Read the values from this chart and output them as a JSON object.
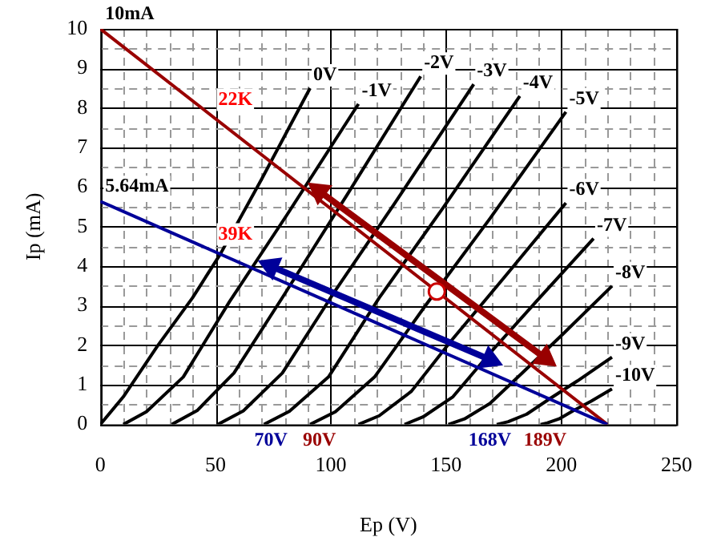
{
  "chart_data": {
    "type": "line",
    "xlabel": "Ep (V)",
    "ylabel": "Ip (mA)",
    "grid": true,
    "marker": "none",
    "xlim": [
      0,
      250
    ],
    "ylim": [
      0,
      10
    ],
    "xticks": [
      0,
      {
        "value": 10,
        "label": null
      },
      {
        "value": 20,
        "label": null
      },
      {
        "value": 30,
        "label": null
      },
      {
        "value": 40,
        "label": null
      },
      50,
      {
        "value": 60,
        "label": null
      },
      {
        "value": 70,
        "label": null
      },
      {
        "value": 80,
        "label": null
      },
      {
        "value": 90,
        "label": null
      },
      100,
      {
        "value": 110,
        "label": null
      },
      {
        "value": 120,
        "label": null
      },
      {
        "value": 130,
        "label": null
      },
      {
        "value": 140,
        "label": null
      },
      150,
      {
        "value": 160,
        "label": null
      },
      {
        "value": 170,
        "label": null
      },
      {
        "value": 180,
        "label": null
      },
      {
        "value": 190,
        "label": null
      },
      200,
      {
        "value": 210,
        "label": null
      },
      {
        "value": 220,
        "label": null
      },
      {
        "value": 230,
        "label": null
      },
      {
        "value": 240,
        "label": null
      },
      250
    ],
    "yticks": [
      0,
      {
        "value": 0.5,
        "label": null
      },
      1,
      {
        "value": 1.5,
        "label": null
      },
      2,
      {
        "value": 2.5,
        "label": null
      },
      3,
      {
        "value": 3.5,
        "label": null
      },
      4,
      {
        "value": 4.5,
        "label": null
      },
      5,
      {
        "value": 5.5,
        "label": null
      },
      6,
      {
        "value": 6.5,
        "label": null
      },
      7,
      {
        "value": 7.5,
        "label": null
      },
      8,
      {
        "value": 8.5,
        "label": null
      },
      9,
      {
        "value": 9.5,
        "label": null
      },
      10
    ],
    "series": [
      {
        "name": "0V",
        "color": "#000000",
        "x": [
          0,
          10,
          25,
          40,
          52,
          70,
          91
        ],
        "values": [
          0,
          0.7,
          2,
          3.2,
          4.3,
          6.2,
          8.5
        ]
      },
      {
        "name": "-1V",
        "color": "#000000",
        "x": [
          10,
          20,
          36,
          56,
          81,
          112
        ],
        "values": [
          0,
          0.32,
          1.2,
          3.1,
          5.3,
          8.1
        ]
      },
      {
        "name": "-2V",
        "color": "#000000",
        "x": [
          31,
          42,
          58,
          80,
          107,
          139
        ],
        "values": [
          0,
          0.35,
          1.3,
          3.3,
          5.8,
          8.8
        ]
      },
      {
        "name": "-3V",
        "color": "#000000",
        "x": [
          51,
          62,
          79,
          101,
          129,
          162
        ],
        "values": [
          0,
          0.34,
          1.3,
          3.3,
          5.7,
          8.6
        ]
      },
      {
        "name": "-4V",
        "color": "#000000",
        "x": [
          71,
          82,
          99,
          121,
          149,
          182
        ],
        "values": [
          0,
          0.33,
          1.2,
          3.2,
          5.5,
          8.3
        ]
      },
      {
        "name": "-5V",
        "color": "#000000",
        "x": [
          91,
          102,
          119,
          141,
          169,
          202
        ],
        "values": [
          0,
          0.32,
          1.2,
          3.0,
          5.2,
          7.9
        ]
      },
      {
        "name": "-6V",
        "color": "#000000",
        "x": [
          112,
          121,
          135,
          152,
          175,
          202
        ],
        "values": [
          0,
          0.22,
          0.84,
          2.1,
          3.7,
          5.6
        ]
      },
      {
        "name": "-7V",
        "color": "#000000",
        "x": [
          132,
          140,
          153,
          169,
          189,
          214
        ],
        "values": [
          0,
          0.19,
          0.7,
          1.8,
          3.1,
          4.7
        ]
      },
      {
        "name": "-8V",
        "color": "#000000",
        "x": [
          151,
          158,
          169,
          183,
          201,
          222
        ],
        "values": [
          0,
          0.14,
          0.53,
          1.3,
          2.3,
          3.5
        ]
      },
      {
        "name": "-9V",
        "color": "#000000",
        "x": [
          172,
          177,
          185,
          195,
          207,
          222
        ],
        "values": [
          0,
          0.07,
          0.26,
          0.65,
          1.1,
          1.7
        ]
      },
      {
        "name": "-10V",
        "color": "#000000",
        "x": [
          191,
          194,
          199,
          205,
          213,
          222
        ],
        "values": [
          0,
          0.04,
          0.14,
          0.34,
          0.59,
          0.9
        ]
      },
      {
        "name": "22K",
        "color": "#990000",
        "x": [
          0,
          220
        ],
        "values": [
          10,
          0
        ]
      },
      {
        "name": "39K",
        "color": "#000099",
        "x": [
          0,
          220
        ],
        "values": [
          5.64,
          0
        ]
      },
      {
        "color": "#990000",
        "marker": "triangle",
        "x": [
          95,
          193
        ],
        "values": [
          5.9,
          1.68
        ]
      },
      {
        "color": "#000099",
        "marker": "triangle",
        "x": [
          74,
          169
        ],
        "values": [
          4.0,
          1.64
        ]
      },
      {
        "type": "scatter",
        "color": "#cc0000",
        "marker": "circle",
        "x": [
          146
        ],
        "values": [
          3.36
        ]
      }
    ],
    "annotations": [
      {
        "text": "10mA",
        "x": 0,
        "y": 10
      },
      {
        "text": "5.64mA",
        "x": 0,
        "y": 5.64
      },
      {
        "text": "70V",
        "x": 74,
        "y": 0
      },
      {
        "text": "90V",
        "x": 95,
        "y": 0
      },
      {
        "text": "168V",
        "x": 169,
        "y": 0
      },
      {
        "text": "189V",
        "x": 193,
        "y": 0
      }
    ]
  }
}
